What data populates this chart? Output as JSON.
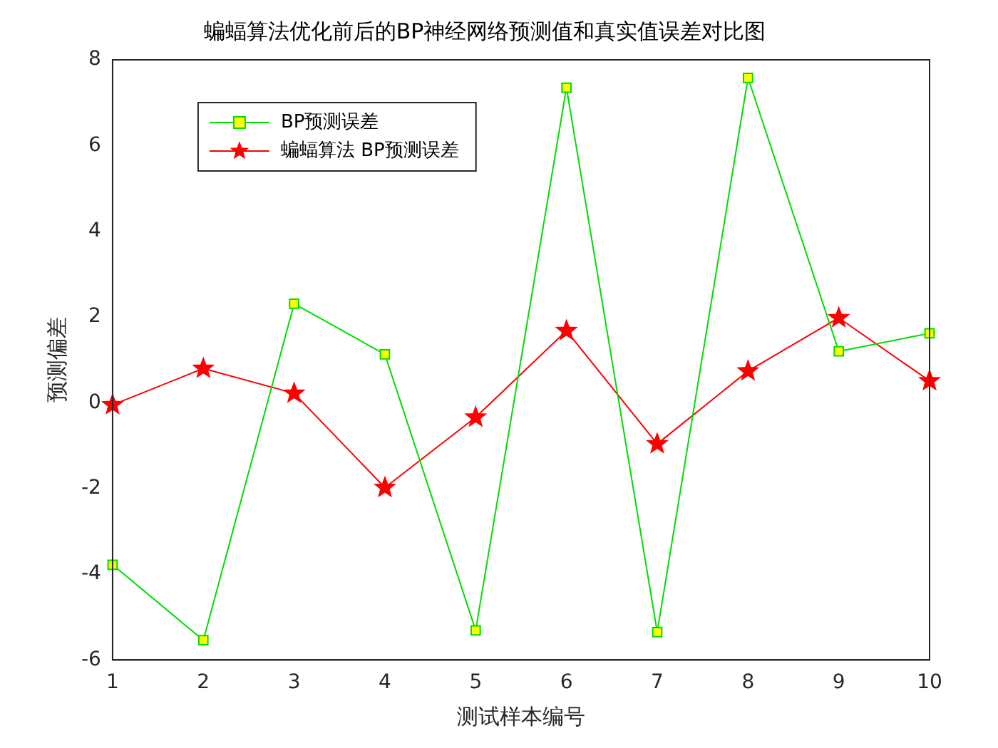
{
  "chart_data": {
    "type": "line",
    "title": "蝙蝠算法优化前后的BP神经网络预测值和真实值误差对比图",
    "xlabel": "测试样本编号",
    "ylabel": "预测偏差",
    "x": [
      1,
      2,
      3,
      4,
      5,
      6,
      7,
      8,
      9,
      10
    ],
    "series": [
      {
        "name": "BP预测误差",
        "color": "#00dd00",
        "marker": "square",
        "values": [
          -3.78,
          -5.54,
          2.31,
          1.13,
          -5.31,
          7.35,
          -5.35,
          7.58,
          1.2,
          1.62
        ]
      },
      {
        "name": "蝙蝠算法 BP预测误差",
        "color": "#ff0000",
        "marker": "star",
        "values": [
          -0.05,
          0.8,
          0.22,
          -1.98,
          -0.34,
          1.68,
          -0.96,
          0.74,
          1.98,
          0.51
        ]
      }
    ],
    "xlim": [
      1,
      10
    ],
    "xticks": [
      1,
      2,
      3,
      4,
      5,
      6,
      7,
      8,
      9,
      10
    ],
    "ylim": [
      -6,
      8
    ],
    "yticks": [
      -6,
      -4,
      -2,
      0,
      2,
      4,
      6,
      8
    ],
    "grid": false,
    "legend": "top left",
    "line_style": "solid"
  }
}
